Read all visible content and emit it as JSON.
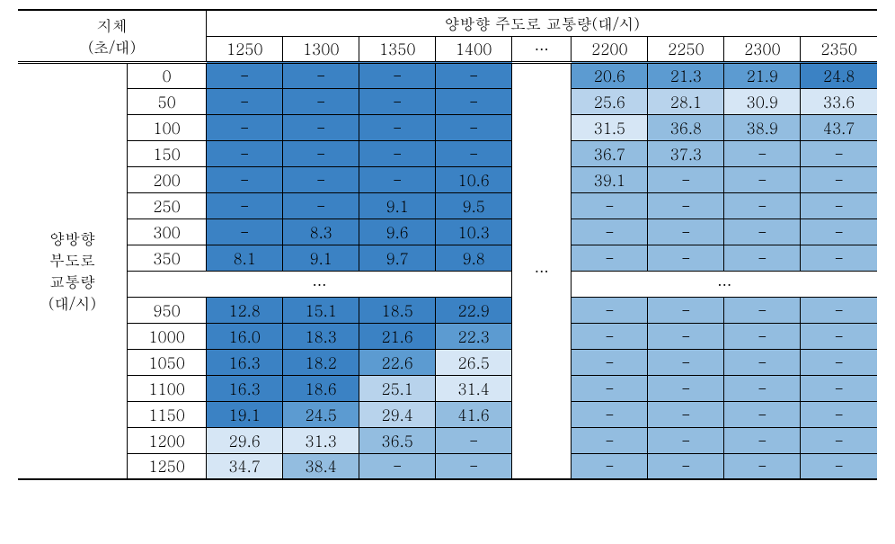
{
  "table": {
    "type": "table",
    "colors": {
      "shade0": "#3b82c4",
      "shade1": "#5c9bd1",
      "shade2": "#93bde0",
      "shade3": "#b8d3ec",
      "shade4": "#d6e6f5",
      "border": "#000000",
      "background": "#ffffff"
    },
    "fontsize": 17,
    "header_top_left": {
      "line1": "지체",
      "line2": "(초/대)"
    },
    "header_top_right": "양방향 주도로 교통량(대/시)",
    "col_headers": [
      "1250",
      "1300",
      "1350",
      "1400",
      "…",
      "2200",
      "2250",
      "2300",
      "2350"
    ],
    "row_label_lines": [
      "양방향",
      "부도로",
      "교통량",
      "(대/시)"
    ],
    "row_headers": [
      "0",
      "50",
      "100",
      "150",
      "200",
      "250",
      "300",
      "350",
      "…",
      "950",
      "1000",
      "1050",
      "1100",
      "1150",
      "1200",
      "1250"
    ],
    "ellipsis_row_left": "…",
    "ellipsis_row_right": "…",
    "middle_ellipsis": "…",
    "rows": [
      {
        "h": "0",
        "left": [
          {
            "v": "-",
            "s": 0
          },
          {
            "v": "-",
            "s": 0
          },
          {
            "v": "-",
            "s": 0
          },
          {
            "v": "-",
            "s": 0
          }
        ],
        "right": [
          {
            "v": "20.6",
            "s": 1
          },
          {
            "v": "21.3",
            "s": 1
          },
          {
            "v": "21.9",
            "s": 1
          },
          {
            "v": "24.8",
            "s": 0
          }
        ]
      },
      {
        "h": "50",
        "left": [
          {
            "v": "-",
            "s": 0
          },
          {
            "v": "-",
            "s": 0
          },
          {
            "v": "-",
            "s": 0
          },
          {
            "v": "-",
            "s": 0
          }
        ],
        "right": [
          {
            "v": "25.6",
            "s": 3
          },
          {
            "v": "28.1",
            "s": 3
          },
          {
            "v": "30.9",
            "s": 4
          },
          {
            "v": "33.6",
            "s": 4
          }
        ]
      },
      {
        "h": "100",
        "left": [
          {
            "v": "-",
            "s": 0
          },
          {
            "v": "-",
            "s": 0
          },
          {
            "v": "-",
            "s": 0
          },
          {
            "v": "-",
            "s": 0
          }
        ],
        "right": [
          {
            "v": "31.5",
            "s": 4
          },
          {
            "v": "36.8",
            "s": 2
          },
          {
            "v": "38.9",
            "s": 2
          },
          {
            "v": "43.7",
            "s": 2
          }
        ]
      },
      {
        "h": "150",
        "left": [
          {
            "v": "-",
            "s": 0
          },
          {
            "v": "-",
            "s": 0
          },
          {
            "v": "-",
            "s": 0
          },
          {
            "v": "-",
            "s": 0
          }
        ],
        "right": [
          {
            "v": "36.7",
            "s": 2
          },
          {
            "v": "37.3",
            "s": 2
          },
          {
            "v": "-",
            "s": 2
          },
          {
            "v": "-",
            "s": 2
          }
        ]
      },
      {
        "h": "200",
        "left": [
          {
            "v": "-",
            "s": 0
          },
          {
            "v": "-",
            "s": 0
          },
          {
            "v": "-",
            "s": 0
          },
          {
            "v": "10.6",
            "s": 0
          }
        ],
        "right": [
          {
            "v": "39.1",
            "s": 2
          },
          {
            "v": "-",
            "s": 2
          },
          {
            "v": "-",
            "s": 2
          },
          {
            "v": "-",
            "s": 2
          }
        ]
      },
      {
        "h": "250",
        "left": [
          {
            "v": "-",
            "s": 0
          },
          {
            "v": "-",
            "s": 0
          },
          {
            "v": "9.1",
            "s": 0
          },
          {
            "v": "9.5",
            "s": 0
          }
        ],
        "right": [
          {
            "v": "-",
            "s": 2
          },
          {
            "v": "-",
            "s": 2
          },
          {
            "v": "-",
            "s": 2
          },
          {
            "v": "-",
            "s": 2
          }
        ]
      },
      {
        "h": "300",
        "left": [
          {
            "v": "-",
            "s": 0
          },
          {
            "v": "8.3",
            "s": 0
          },
          {
            "v": "9.6",
            "s": 0
          },
          {
            "v": "10.3",
            "s": 0
          }
        ],
        "right": [
          {
            "v": "-",
            "s": 2
          },
          {
            "v": "-",
            "s": 2
          },
          {
            "v": "-",
            "s": 2
          },
          {
            "v": "-",
            "s": 2
          }
        ]
      },
      {
        "h": "350",
        "left": [
          {
            "v": "8.1",
            "s": 0
          },
          {
            "v": "9.1",
            "s": 0
          },
          {
            "v": "9.7",
            "s": 0
          },
          {
            "v": "9.8",
            "s": 0
          }
        ],
        "right": [
          {
            "v": "-",
            "s": 2
          },
          {
            "v": "-",
            "s": 2
          },
          {
            "v": "-",
            "s": 2
          },
          {
            "v": "-",
            "s": 2
          }
        ]
      },
      {
        "h": "950",
        "left": [
          {
            "v": "12.8",
            "s": 0
          },
          {
            "v": "15.1",
            "s": 0
          },
          {
            "v": "18.5",
            "s": 0
          },
          {
            "v": "22.9",
            "s": 0
          }
        ],
        "right": [
          {
            "v": "-",
            "s": 2
          },
          {
            "v": "-",
            "s": 2
          },
          {
            "v": "-",
            "s": 2
          },
          {
            "v": "-",
            "s": 2
          }
        ]
      },
      {
        "h": "1000",
        "left": [
          {
            "v": "16.0",
            "s": 0
          },
          {
            "v": "18.3",
            "s": 0
          },
          {
            "v": "21.6",
            "s": 0
          },
          {
            "v": "22.3",
            "s": 1
          }
        ],
        "right": [
          {
            "v": "-",
            "s": 2
          },
          {
            "v": "-",
            "s": 2
          },
          {
            "v": "-",
            "s": 2
          },
          {
            "v": "-",
            "s": 2
          }
        ]
      },
      {
        "h": "1050",
        "left": [
          {
            "v": "16.3",
            "s": 0
          },
          {
            "v": "18.2",
            "s": 0
          },
          {
            "v": "22.6",
            "s": 1
          },
          {
            "v": "26.5",
            "s": 4
          }
        ],
        "right": [
          {
            "v": "-",
            "s": 2
          },
          {
            "v": "-",
            "s": 2
          },
          {
            "v": "-",
            "s": 2
          },
          {
            "v": "-",
            "s": 2
          }
        ]
      },
      {
        "h": "1100",
        "left": [
          {
            "v": "16.3",
            "s": 0
          },
          {
            "v": "18.6",
            "s": 0
          },
          {
            "v": "25.1",
            "s": 3
          },
          {
            "v": "31.4",
            "s": 4
          }
        ],
        "right": [
          {
            "v": "-",
            "s": 2
          },
          {
            "v": "-",
            "s": 2
          },
          {
            "v": "-",
            "s": 2
          },
          {
            "v": "-",
            "s": 2
          }
        ]
      },
      {
        "h": "1150",
        "left": [
          {
            "v": "19.1",
            "s": 0
          },
          {
            "v": "24.5",
            "s": 1
          },
          {
            "v": "29.4",
            "s": 3
          },
          {
            "v": "41.6",
            "s": 2
          }
        ],
        "right": [
          {
            "v": "-",
            "s": 2
          },
          {
            "v": "-",
            "s": 2
          },
          {
            "v": "-",
            "s": 2
          },
          {
            "v": "-",
            "s": 2
          }
        ]
      },
      {
        "h": "1200",
        "left": [
          {
            "v": "29.6",
            "s": 4
          },
          {
            "v": "31.3",
            "s": 4
          },
          {
            "v": "36.5",
            "s": 2
          },
          {
            "v": "-",
            "s": 2
          }
        ],
        "right": [
          {
            "v": "-",
            "s": 2
          },
          {
            "v": "-",
            "s": 2
          },
          {
            "v": "-",
            "s": 2
          },
          {
            "v": "-",
            "s": 2
          }
        ]
      },
      {
        "h": "1250",
        "left": [
          {
            "v": "34.7",
            "s": 4
          },
          {
            "v": "38.4",
            "s": 2
          },
          {
            "v": "-",
            "s": 2
          },
          {
            "v": "-",
            "s": 2
          }
        ],
        "right": [
          {
            "v": "-",
            "s": 2
          },
          {
            "v": "-",
            "s": 2
          },
          {
            "v": "-",
            "s": 2
          },
          {
            "v": "-",
            "s": 2
          }
        ]
      }
    ]
  }
}
